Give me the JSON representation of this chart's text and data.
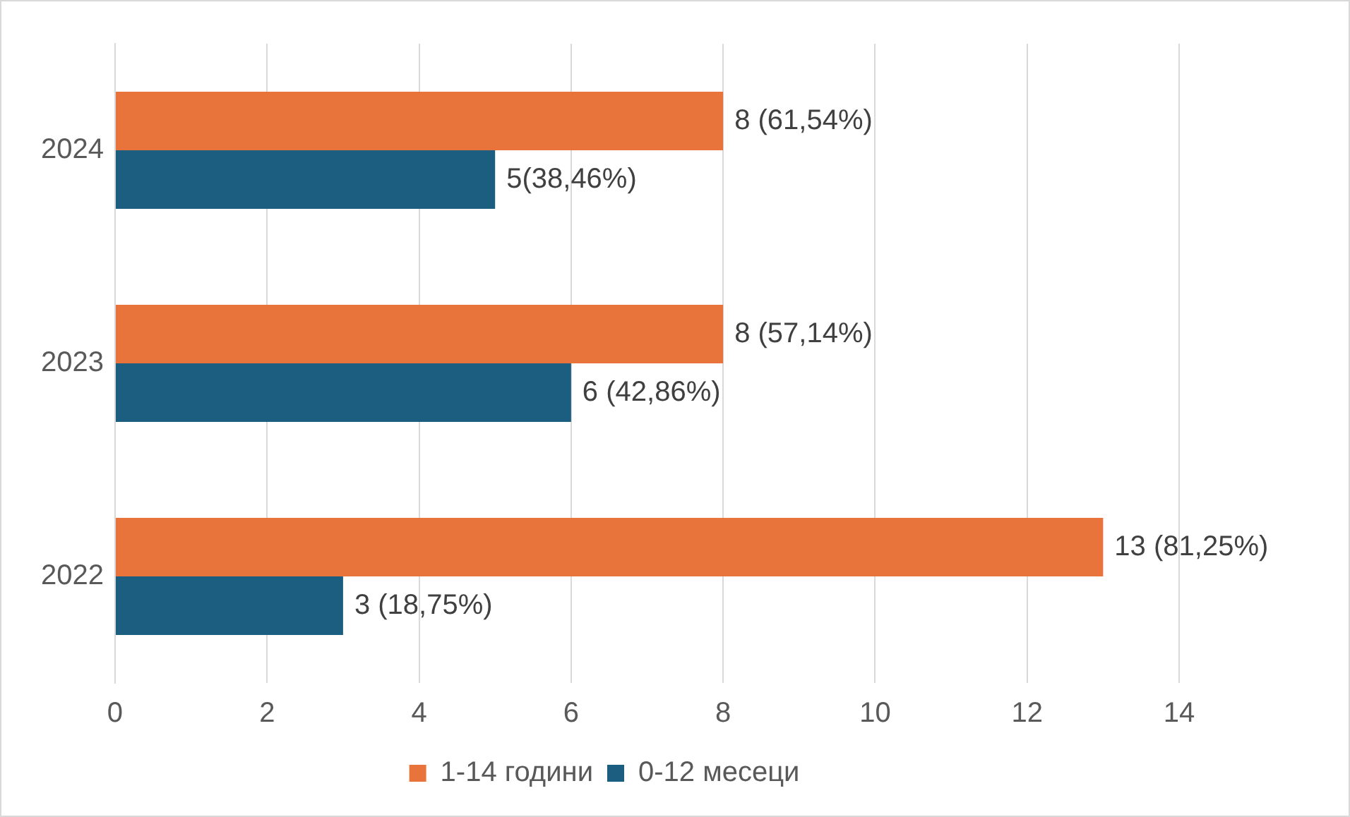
{
  "chart_data": {
    "type": "bar",
    "orientation": "horizontal",
    "categories": [
      "2024",
      "2023",
      "2022"
    ],
    "series": [
      {
        "name": "1-14 години",
        "color": "#e8743b",
        "values": [
          8,
          8,
          13
        ],
        "value_labels": [
          "8 (61,54%)",
          "8 (57,14%)",
          "13 (81,25%)"
        ]
      },
      {
        "name": "0-12 месеци",
        "color": "#1b5e80",
        "values": [
          5,
          6,
          3
        ],
        "value_labels": [
          "5(38,46%)",
          "6 (42,86%)",
          "3 (18,75%)"
        ]
      }
    ],
    "xlim": [
      0,
      14
    ],
    "xticks": [
      0,
      2,
      4,
      6,
      8,
      10,
      12,
      14
    ],
    "grid": "x",
    "legend": "bottom"
  }
}
